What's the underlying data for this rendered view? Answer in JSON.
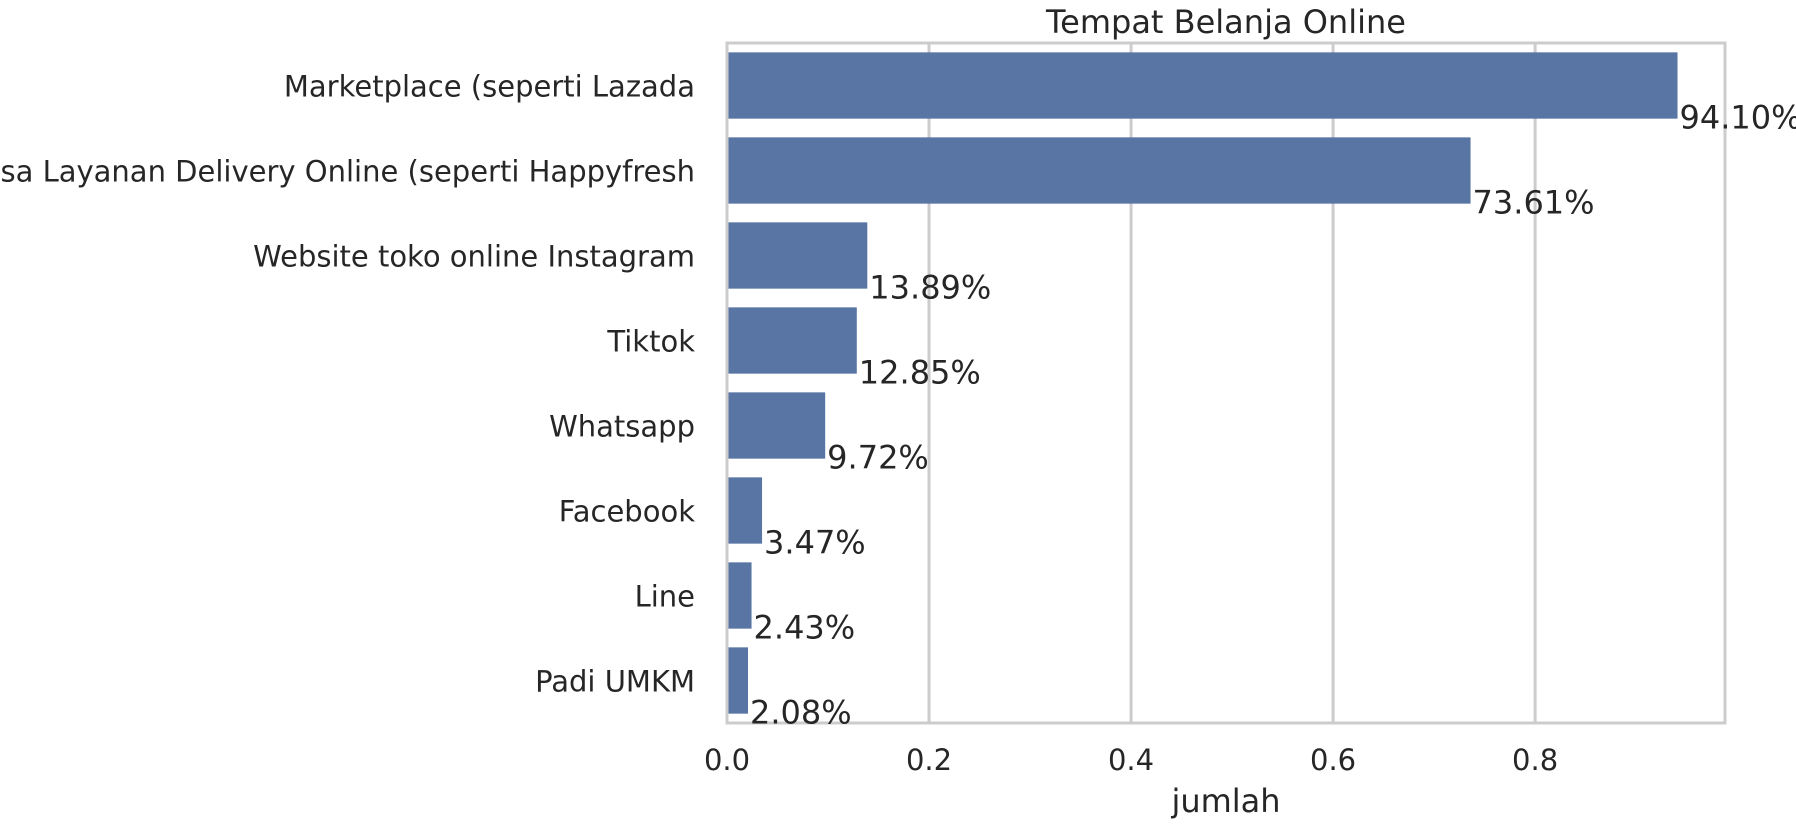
{
  "chart_data": {
    "type": "bar",
    "orientation": "horizontal",
    "title": "Tempat Belanja Online",
    "xlabel": "jumlah",
    "ylabel": "",
    "xlim": [
      0,
      0.988
    ],
    "xticks": [
      0.0,
      0.2,
      0.4,
      0.6,
      0.8
    ],
    "xtick_labels": [
      "0.0",
      "0.2",
      "0.4",
      "0.6",
      "0.8"
    ],
    "grid": true,
    "categories": [
      "Marketplace (seperti Lazada",
      "Jasa Layanan Delivery Online (seperti Happyfresh",
      "Website toko online Instagram",
      "Tiktok",
      "Whatsapp",
      "Facebook",
      "Line",
      "Padi UMKM"
    ],
    "values": [
      0.941,
      0.7361,
      0.1389,
      0.1285,
      0.0972,
      0.0347,
      0.0243,
      0.0208
    ],
    "data_labels": [
      "94.10%",
      "73.61%",
      "13.89%",
      "12.85%",
      "9.72%",
      "3.47%",
      "2.43%",
      "2.08%"
    ],
    "colors": {
      "bar": "#5975a4",
      "grid": "#cccccc",
      "frame": "#cccccc",
      "text": "#262626"
    }
  }
}
